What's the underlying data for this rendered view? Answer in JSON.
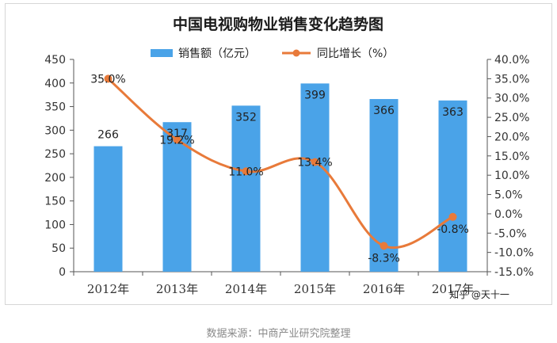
{
  "chart_data": {
    "type": "bar",
    "title": "中国电视购物业销售变化趋势图",
    "categories": [
      "2012年",
      "2013年",
      "2014年",
      "2015年",
      "2016年",
      "2017年"
    ],
    "series": [
      {
        "name": "销售额（亿元）",
        "type": "bar",
        "axis": "left",
        "color": "#4aa3e8",
        "values": [
          266,
          317,
          352,
          399,
          366,
          363
        ],
        "labels": [
          "266",
          "317",
          "352",
          "399",
          "366",
          "363"
        ]
      },
      {
        "name": "同比增长（%）",
        "type": "line",
        "axis": "right",
        "color": "#e87a3a",
        "values": [
          35.0,
          19.2,
          11.0,
          13.4,
          -8.3,
          -0.8
        ],
        "labels": [
          "35.0%",
          "19.2%",
          "11.0%",
          "13.4%",
          "-8.3%",
          "-0.8%"
        ]
      }
    ],
    "ylim_left": [
      0,
      450
    ],
    "yticks_left": [
      "0",
      "50",
      "100",
      "150",
      "200",
      "250",
      "300",
      "350",
      "400",
      "450"
    ],
    "ylim_right": [
      -15,
      40
    ],
    "yticks_right": [
      "-15.0%",
      "-10.0%",
      "-5.0%",
      "0.0%",
      "5.0%",
      "10.0%",
      "15.0%",
      "20.0%",
      "25.0%",
      "30.0%",
      "35.0%",
      "40.0%"
    ],
    "grid": false,
    "legend_position": "top-center"
  },
  "watermark": "知乎 @天十一",
  "source_note": "数据来源：中商产业研究院整理"
}
